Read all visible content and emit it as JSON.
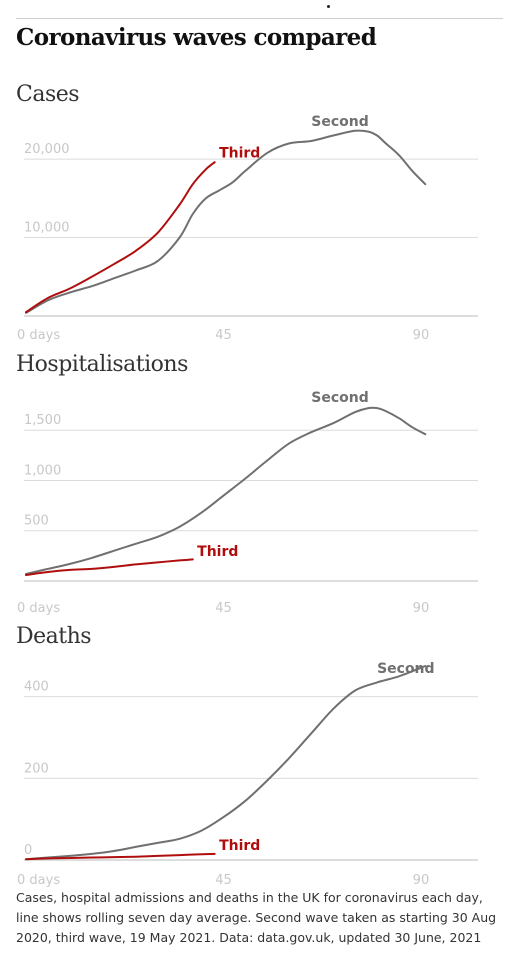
{
  "page_title": "Coronavirus waves compared",
  "colors": {
    "second": "#707070",
    "third": "#b00e0e",
    "grid": "#dcdcdc",
    "tick": "#c8c8c8",
    "baseline": "#bbbbbb"
  },
  "chart_data": [
    {
      "type": "line",
      "title": "Cases",
      "xlabel": "",
      "ylabel": "",
      "xlim": [
        0,
        103
      ],
      "ylim": [
        0,
        26000
      ],
      "x_ticks": [
        {
          "value": 0,
          "label": "0 days"
        },
        {
          "value": 45,
          "label": "45"
        },
        {
          "value": 90,
          "label": "90"
        }
      ],
      "y_ticks": [
        {
          "value": 0,
          "label": ""
        },
        {
          "value": 10000,
          "label": "10,000"
        },
        {
          "value": 20000,
          "label": "20,000"
        }
      ],
      "grid": true,
      "series": [
        {
          "name": "Second",
          "color": "#707070",
          "x": [
            0,
            5,
            10,
            15,
            20,
            25,
            30,
            35,
            38,
            41,
            44,
            47,
            50,
            55,
            60,
            65,
            70,
            75,
            78,
            80,
            82,
            85,
            88,
            91
          ],
          "y": [
            400,
            2000,
            3000,
            3800,
            4800,
            5800,
            7000,
            10000,
            13000,
            15000,
            16000,
            17000,
            18500,
            20800,
            22000,
            22300,
            23000,
            23600,
            23500,
            23000,
            22000,
            20500,
            18500,
            16800
          ],
          "label_at": {
            "x": 65,
            "y": 24200
          }
        },
        {
          "name": "Third",
          "color": "#b00e0e",
          "x": [
            0,
            5,
            10,
            15,
            20,
            25,
            30,
            35,
            38,
            41,
            43
          ],
          "y": [
            500,
            2300,
            3500,
            5000,
            6600,
            8300,
            10600,
            14200,
            16800,
            18700,
            19600
          ],
          "label_at": {
            "x": 44,
            "y": 20200
          }
        }
      ]
    },
    {
      "type": "line",
      "title": "Hospitalisations",
      "xlabel": "",
      "ylabel": "",
      "xlim": [
        0,
        103
      ],
      "ylim": [
        0,
        1920
      ],
      "x_ticks": [
        {
          "value": 0,
          "label": "0 days"
        },
        {
          "value": 45,
          "label": "45"
        },
        {
          "value": 90,
          "label": "90"
        }
      ],
      "y_ticks": [
        {
          "value": 0,
          "label": ""
        },
        {
          "value": 500,
          "label": "500"
        },
        {
          "value": 1000,
          "label": "1,000"
        },
        {
          "value": 1500,
          "label": "1,500"
        }
      ],
      "grid": true,
      "series": [
        {
          "name": "Second",
          "color": "#707070",
          "x": [
            0,
            5,
            10,
            15,
            20,
            25,
            30,
            35,
            40,
            45,
            50,
            55,
            60,
            65,
            70,
            75,
            78,
            80,
            82,
            85,
            88,
            91
          ],
          "y": [
            70,
            120,
            170,
            230,
            300,
            370,
            440,
            540,
            680,
            850,
            1020,
            1200,
            1370,
            1480,
            1570,
            1680,
            1720,
            1720,
            1690,
            1620,
            1530,
            1460
          ],
          "label_at": {
            "x": 65,
            "y": 1780
          }
        },
        {
          "name": "Third",
          "color": "#b00e0e",
          "x": [
            0,
            5,
            10,
            15,
            20,
            25,
            30,
            35,
            38
          ],
          "y": [
            60,
            90,
            110,
            120,
            140,
            165,
            185,
            205,
            215
          ],
          "label_at": {
            "x": 39,
            "y": 250
          }
        }
      ]
    },
    {
      "type": "line",
      "title": "Deaths",
      "xlabel": "",
      "ylabel": "",
      "xlim": [
        0,
        103
      ],
      "ylim": [
        0,
        480
      ],
      "x_ticks": [
        {
          "value": 0,
          "label": "0 days"
        },
        {
          "value": 45,
          "label": "45"
        },
        {
          "value": 90,
          "label": "90"
        }
      ],
      "y_ticks": [
        {
          "value": 0,
          "label": "0"
        },
        {
          "value": 200,
          "label": "200"
        },
        {
          "value": 400,
          "label": "400"
        }
      ],
      "grid": true,
      "series": [
        {
          "name": "Second",
          "color": "#707070",
          "x": [
            0,
            5,
            10,
            15,
            20,
            25,
            30,
            35,
            40,
            45,
            50,
            55,
            60,
            65,
            70,
            75,
            80,
            85,
            91
          ],
          "y": [
            2,
            6,
            10,
            15,
            22,
            32,
            42,
            52,
            72,
            105,
            145,
            195,
            250,
            310,
            370,
            415,
            435,
            450,
            475
          ],
          "label_at": {
            "x": 80,
            "y": 458
          }
        },
        {
          "name": "Third",
          "color": "#b00e0e",
          "x": [
            0,
            5,
            10,
            15,
            20,
            25,
            30,
            35,
            40,
            43
          ],
          "y": [
            2,
            4,
            5,
            6,
            7,
            8,
            10,
            12,
            14,
            15
          ],
          "label_at": {
            "x": 44,
            "y": 24
          }
        }
      ]
    }
  ],
  "footnote": "Cases, hospital admissions and deaths in the UK for coronavirus each day, line shows rolling seven day average. Second wave taken as starting 30 Aug 2020, third wave, 19 May 2021. Data: data.gov.uk, updated 30 June, 2021"
}
